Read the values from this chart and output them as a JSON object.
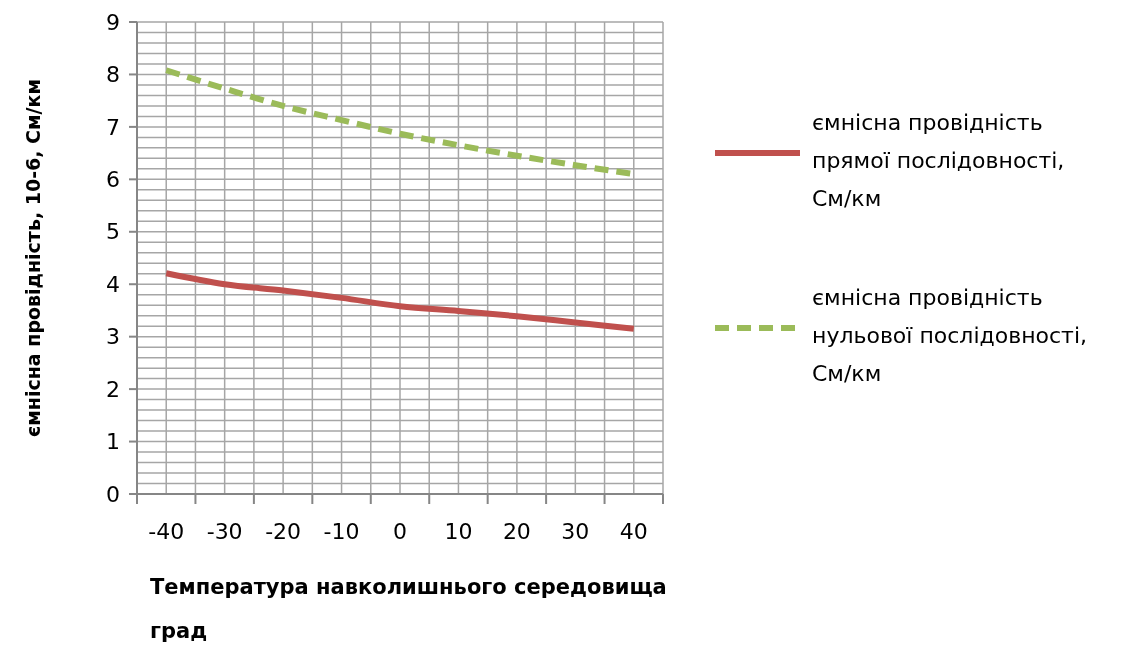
{
  "chart_data": {
    "type": "line",
    "xlabel": "Температура навколишнього середовища град",
    "ylabel": "ємнісна провідність, 10-6, См/км",
    "categories": [
      "-40",
      "-30",
      "-20",
      "-10",
      "0",
      "10",
      "20",
      "30",
      "40"
    ],
    "series": [
      {
        "name": "ємнісна провідність прямої послідовності, См/км",
        "color": "#c0504d",
        "line_style": "solid",
        "values": [
          4.21,
          4.0,
          3.88,
          3.74,
          3.58,
          3.49,
          3.39,
          3.27,
          3.15
        ]
      },
      {
        "name": "ємнісна провідність нульової послідовності, См/км",
        "color": "#9bbb59",
        "line_style": "dashed",
        "values": [
          8.08,
          7.73,
          7.4,
          7.13,
          6.87,
          6.65,
          6.45,
          6.27,
          6.1
        ]
      }
    ],
    "ylim": [
      0,
      9
    ],
    "yticks": [
      0,
      {
        "value": 0.2,
        "label": null
      },
      {
        "value": 0.4,
        "label": null
      },
      {
        "value": 0.6,
        "label": null
      },
      {
        "value": 0.8,
        "label": null
      },
      1,
      {
        "value": 1.2,
        "label": null
      },
      {
        "value": 1.4,
        "label": null
      },
      {
        "value": 1.6,
        "label": null
      },
      {
        "value": 1.8,
        "label": null
      },
      2,
      {
        "value": 2.2,
        "label": null
      },
      {
        "value": 2.4,
        "label": null
      },
      {
        "value": 2.6,
        "label": null
      },
      {
        "value": 2.8,
        "label": null
      },
      3,
      {
        "value": 3.2,
        "label": null
      },
      {
        "value": 3.4,
        "label": null
      },
      {
        "value": 3.6,
        "label": null
      },
      {
        "value": 3.8,
        "label": null
      },
      4,
      {
        "value": 4.2,
        "label": null
      },
      {
        "value": 4.4,
        "label": null
      },
      {
        "value": 4.6,
        "label": null
      },
      {
        "value": 4.8,
        "label": null
      },
      5,
      {
        "value": 5.2,
        "label": null
      },
      {
        "value": 5.4,
        "label": null
      },
      {
        "value": 5.6,
        "label": null
      },
      {
        "value": 5.8,
        "label": null
      },
      6,
      {
        "value": 6.2,
        "label": null
      },
      {
        "value": 6.4,
        "label": null
      },
      {
        "value": 6.6,
        "label": null
      },
      {
        "value": 6.8,
        "label": null
      },
      7,
      {
        "value": 7.2,
        "label": null
      },
      {
        "value": 7.4,
        "label": null
      },
      {
        "value": 7.6,
        "label": null
      },
      {
        "value": 7.8,
        "label": null
      },
      8,
      {
        "value": 8.2,
        "label": null
      },
      {
        "value": 8.4,
        "label": null
      },
      {
        "value": 8.6,
        "label": null
      },
      {
        "value": 8.8,
        "label": null
      },
      9
    ],
    "grid": true,
    "legend": "right",
    "marker": "none"
  }
}
